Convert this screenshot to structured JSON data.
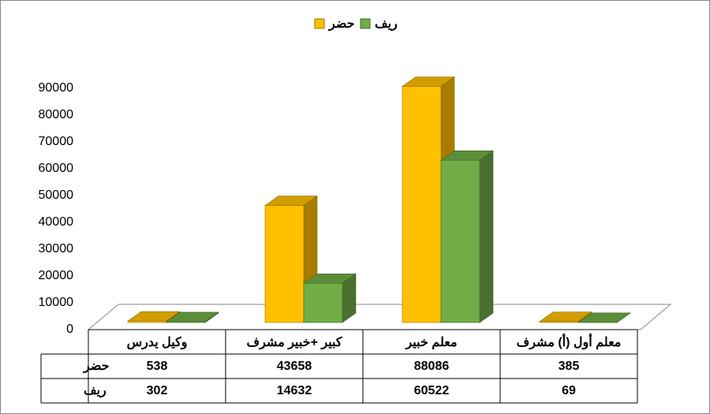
{
  "chart_data": {
    "type": "bar3d",
    "categories": [
      "وكيل يدرس",
      "كبير +خبير مشرف",
      "معلم خبير",
      "معلم أول (أ) مشرف"
    ],
    "series": [
      {
        "name": "حضر",
        "color": "#FFC000",
        "values": [
          538,
          43658,
          88086,
          385
        ]
      },
      {
        "name": "ريف",
        "color": "#70AD47",
        "values": [
          302,
          14632,
          60522,
          69
        ]
      }
    ],
    "ylim": [
      0,
      90000
    ],
    "yticks": [
      0,
      10000,
      20000,
      30000,
      40000,
      50000,
      60000,
      70000,
      80000,
      90000
    ],
    "legend": "top",
    "data_table": true
  }
}
